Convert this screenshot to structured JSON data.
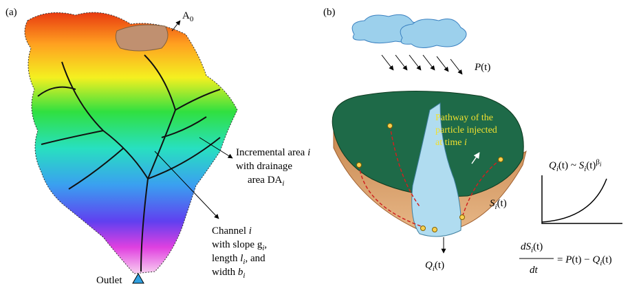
{
  "panel_a": {
    "label": "(a)",
    "a0": [
      "A",
      "0"
    ],
    "incremental_area": [
      [
        "Incremental area ",
        "i"
      ],
      [
        "with drainage"
      ],
      [
        "area DA",
        "i"
      ]
    ],
    "channel": [
      [
        "Channel ",
        "i"
      ],
      [
        "with slope g",
        "i",
        ","
      ],
      [
        "length ",
        "l",
        "i",
        ", and"
      ],
      [
        "width ",
        "b",
        "i"
      ]
    ],
    "outlet": "Outlet"
  },
  "panel_b": {
    "label": "(b)",
    "precipitation": [
      "P",
      "(t)"
    ],
    "pathway": [
      "Pathway of the",
      "particle injected",
      "at time ",
      "i"
    ],
    "storage": [
      "S",
      "i",
      "(t)"
    ],
    "discharge": [
      "Q",
      "i",
      "(t)"
    ],
    "relation": [
      "Q",
      "i",
      "(t) ~ ",
      "S",
      "i",
      "(t)",
      "β",
      "i"
    ],
    "balance": {
      "numerator": [
        "dS",
        "i",
        "(t)"
      ],
      "denominator": "dt",
      "rhs": [
        "= ",
        "P",
        "(t) − ",
        "Q",
        "i",
        "(t)"
      ]
    }
  }
}
